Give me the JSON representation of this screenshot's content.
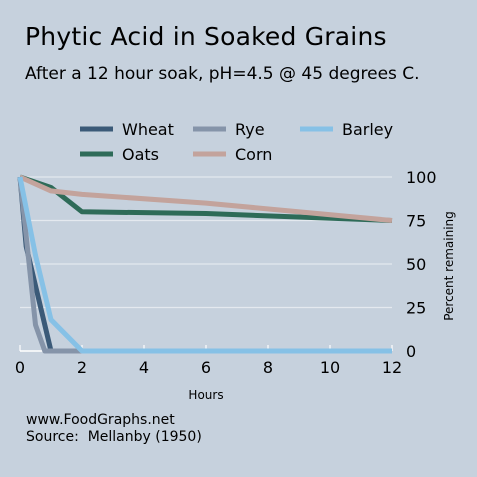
{
  "title": "Phytic Acid in Soaked Grains",
  "subtitle": "After a 12 hour soak, pH=4.5 @ 45 degrees C.",
  "footer": {
    "site": "www.FoodGraphs.net",
    "source": "Source:  Mellanby (1950)"
  },
  "chart_data": {
    "type": "line",
    "title": "Phytic Acid in Soaked Grains",
    "subtitle": "After a 12 hour soak, pH=4.5 @ 45 degrees C.",
    "xlabel": "Hours",
    "ylabel": "Percent remaining",
    "xlim": [
      0,
      12
    ],
    "ylim": [
      0,
      100
    ],
    "xticks": [
      0,
      2,
      4,
      6,
      8,
      10,
      12
    ],
    "yticks": [
      0,
      25,
      50,
      75,
      100
    ],
    "grid": "horizontal",
    "legend_position": "top",
    "y_axis_side": "right",
    "series": [
      {
        "name": "Wheat",
        "color": "#3b5a78",
        "x": [
          0,
          0.2,
          1,
          2,
          12
        ],
        "y": [
          100,
          60,
          0,
          0,
          0
        ]
      },
      {
        "name": "Oats",
        "color": "#2e6b58",
        "x": [
          0,
          1,
          2,
          6,
          12
        ],
        "y": [
          100,
          94,
          80,
          79,
          75
        ]
      },
      {
        "name": "Rye",
        "color": "#8594a9",
        "x": [
          0,
          0.5,
          0.8,
          2,
          12
        ],
        "y": [
          100,
          15,
          0,
          0,
          0
        ]
      },
      {
        "name": "Corn",
        "color": "#c3a39c",
        "x": [
          0,
          1,
          2,
          6,
          12
        ],
        "y": [
          100,
          92,
          90,
          85,
          75
        ]
      },
      {
        "name": "Barley",
        "color": "#86c1e6",
        "x": [
          0,
          0.5,
          1,
          2,
          12
        ],
        "y": [
          100,
          55,
          18,
          0,
          0
        ]
      }
    ]
  }
}
